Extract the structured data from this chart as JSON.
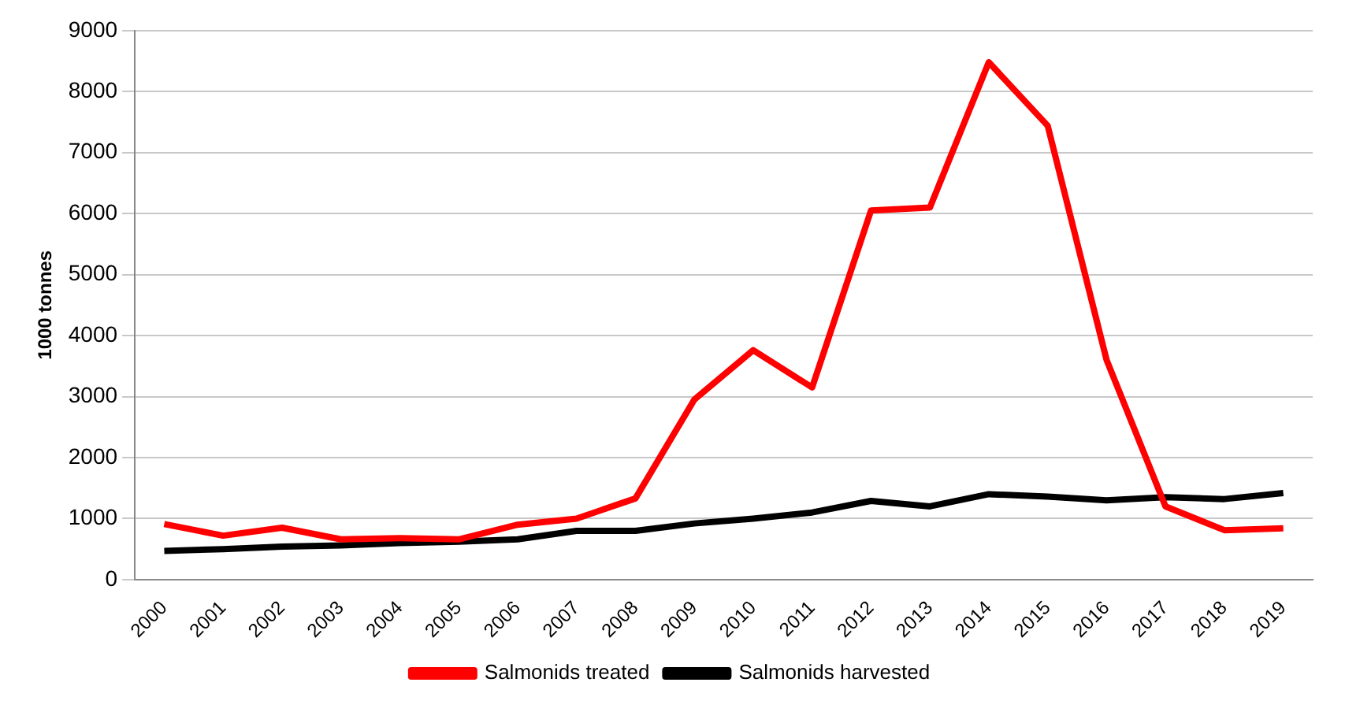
{
  "chart_data": {
    "type": "line",
    "ylabel": "1000 tonnes",
    "categories": [
      "2000",
      "2001",
      "2002",
      "2003",
      "2004",
      "2005",
      "2006",
      "2007",
      "2008",
      "2009",
      "2010",
      "2011",
      "2012",
      "2013",
      "2014",
      "2015",
      "2016",
      "2017",
      "2018",
      "2019"
    ],
    "series": [
      {
        "name": "Salmonids treated",
        "color": "#ff0000",
        "values": [
          910,
          720,
          850,
          660,
          680,
          660,
          900,
          1000,
          1330,
          2950,
          3760,
          3150,
          6050,
          6100,
          8480,
          7440,
          3600,
          1200,
          810,
          840
        ]
      },
      {
        "name": "Salmonids harvested",
        "color": "#000000",
        "values": [
          470,
          500,
          540,
          560,
          600,
          620,
          660,
          800,
          800,
          920,
          1000,
          1100,
          1290,
          1200,
          1400,
          1360,
          1300,
          1350,
          1320,
          1420
        ]
      }
    ],
    "ylim": [
      0,
      9000
    ],
    "yticks": [
      0,
      1000,
      2000,
      3000,
      4000,
      5000,
      6000,
      7000,
      8000,
      9000
    ],
    "grid": "y",
    "legend": "bottom",
    "marker": "none",
    "line_style": "solid"
  }
}
